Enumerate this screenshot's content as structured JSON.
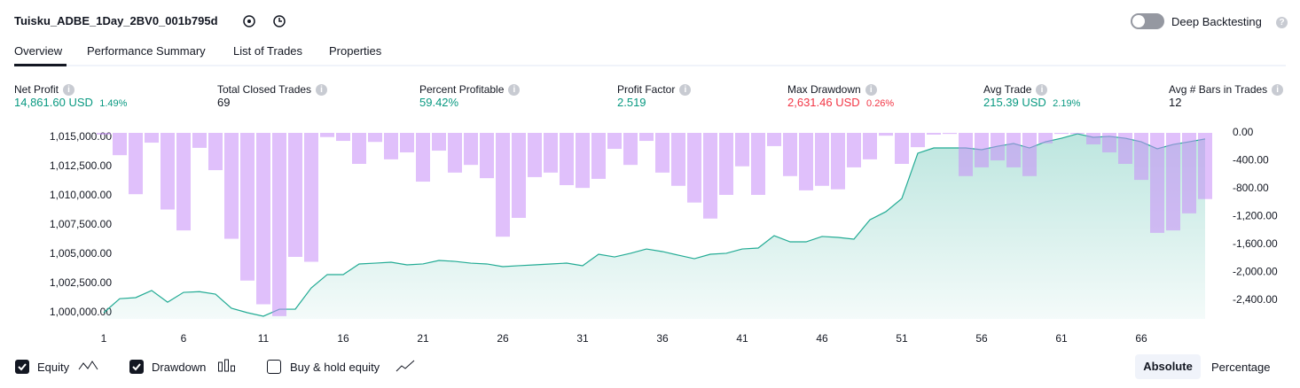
{
  "header": {
    "title": "Tuisku_ADBE_1Day_2BV0_001b795d",
    "deep_backtesting": "Deep Backtesting"
  },
  "tabs": [
    "Overview",
    "Performance Summary",
    "List of Trades",
    "Properties"
  ],
  "metrics": [
    {
      "label": "Net Profit",
      "value": "14,861.60 USD",
      "percent": "1.49%"
    },
    {
      "label": "Total Closed Trades",
      "value": "69"
    },
    {
      "label": "Percent Profitable",
      "value": "59.42%"
    },
    {
      "label": "Profit Factor",
      "value": "2.519"
    },
    {
      "label": "Max Drawdown",
      "value": "2,631.46 USD",
      "percent": "0.26%"
    },
    {
      "label": "Avg Trade",
      "value": "215.39 USD",
      "percent": "2.19%"
    },
    {
      "label": "Avg # Bars in Trades",
      "value": "12"
    }
  ],
  "chart_data": {
    "type": "line",
    "x": [
      1,
      2,
      3,
      4,
      5,
      6,
      7,
      8,
      9,
      10,
      11,
      12,
      13,
      14,
      15,
      16,
      17,
      18,
      19,
      20,
      21,
      22,
      23,
      24,
      25,
      26,
      27,
      28,
      29,
      30,
      31,
      32,
      33,
      34,
      35,
      36,
      37,
      38,
      39,
      40,
      41,
      42,
      43,
      44,
      45,
      46,
      47,
      48,
      49,
      50,
      51,
      52,
      53,
      54,
      55,
      56,
      57,
      58,
      59,
      60,
      61,
      62,
      63,
      64,
      65,
      66,
      67,
      68,
      69,
      70
    ],
    "xlim": [
      1,
      70
    ],
    "xticks": [
      1,
      6,
      11,
      16,
      21,
      26,
      31,
      36,
      41,
      46,
      51,
      56,
      61,
      66
    ],
    "series": [
      {
        "name": "Equity",
        "color": "#22ab94",
        "values": [
          1000000,
          1001200,
          1001290,
          1001900,
          1000900,
          1001740,
          1001800,
          1001590,
          1000380,
          1000000,
          999700,
          1000300,
          1000300,
          1002120,
          1003260,
          1003260,
          1004170,
          1004240,
          1004320,
          1004090,
          1004170,
          1004470,
          1004390,
          1004240,
          1004170,
          1003940,
          1004020,
          1004090,
          1004170,
          1004240,
          1004020,
          1005000,
          1004770,
          1005080,
          1005450,
          1005230,
          1004920,
          1004620,
          1005000,
          1005080,
          1005450,
          1005530,
          1006590,
          1006060,
          1006060,
          1006520,
          1006440,
          1006290,
          1007950,
          1008640,
          1009770,
          1013640,
          1014090,
          1014090,
          1014090,
          1013940,
          1014240,
          1014470,
          1014090,
          1014620,
          1014920,
          1015300,
          1015000,
          1015080,
          1014920,
          1014620,
          1014020,
          1014390,
          1014620,
          1014860
        ]
      },
      {
        "name": "Drawdown",
        "color": "#c78cf7",
        "axis": "y2",
        "values": [
          -25,
          -320,
          -880,
          -140,
          -1100,
          -1400,
          -215,
          -535,
          -1520,
          -2120,
          -2460,
          -2630,
          -1780,
          -1850,
          -60,
          -115,
          -445,
          -130,
          -380,
          -280,
          -700,
          -255,
          -570,
          -460,
          -650,
          -1490,
          -1220,
          -635,
          -570,
          -750,
          -790,
          -660,
          -230,
          -460,
          -115,
          -570,
          -760,
          -1000,
          -1230,
          -890,
          -480,
          -890,
          -190,
          -620,
          -825,
          -760,
          -810,
          -495,
          -380,
          -40,
          -445,
          -205,
          -25,
          -15,
          -620,
          -495,
          -395,
          -495,
          -620,
          -150,
          -15,
          -15,
          -165,
          -280,
          -445,
          -675,
          -1435,
          -1400,
          -1155,
          -950
        ]
      }
    ],
    "ylim": [
      999470,
      1015380
    ],
    "yticks": [
      {
        "value": 1000000,
        "label": "1,000,000.00"
      },
      {
        "value": 1002500,
        "label": "1,002,500.00"
      },
      {
        "value": 1005000,
        "label": "1,005,000.00"
      },
      {
        "value": 1007500,
        "label": "1,007,500.00"
      },
      {
        "value": 1010000,
        "label": "1,010,000.00"
      },
      {
        "value": 1012500,
        "label": "1,012,500.00"
      },
      {
        "value": 1015000,
        "label": "1,015,000.00"
      }
    ],
    "y2lim": [
      -2670,
      0
    ],
    "y2ticks": [
      {
        "value": 0,
        "label": "0.00"
      },
      {
        "value": -400,
        "label": "-400.00"
      },
      {
        "value": -800,
        "label": "-800.00"
      },
      {
        "value": -1200,
        "label": "-1,200.00"
      },
      {
        "value": -1600,
        "label": "-1,600.00"
      },
      {
        "value": -2000,
        "label": "-2,000.00"
      },
      {
        "value": -2400,
        "label": "-2,400.00"
      }
    ],
    "unchecked": "Buy & hold equity"
  },
  "modes": [
    "Absolute",
    "Percentage"
  ]
}
